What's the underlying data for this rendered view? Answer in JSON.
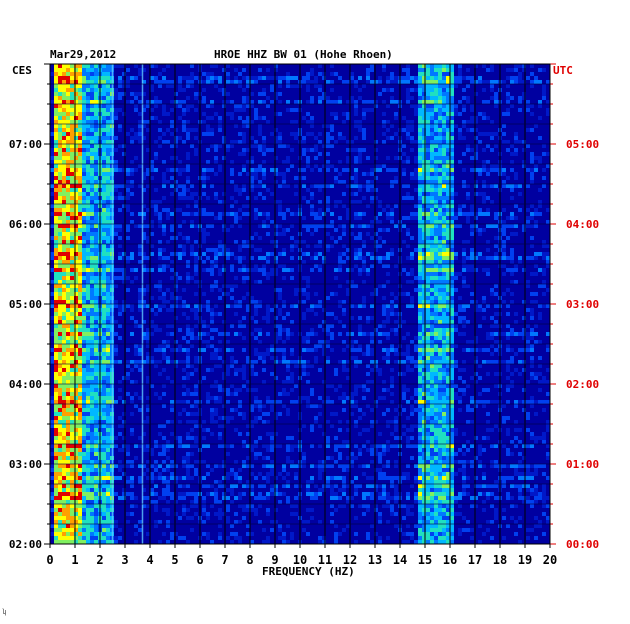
{
  "header": {
    "date": "Mar29,2012",
    "station": "HROE HHZ BW 01 (Hohe Rhoen)"
  },
  "timezones": {
    "left": "CES",
    "right": "UTC"
  },
  "footer_mark": "ʮ",
  "colors": {
    "background": "#ffffff",
    "axis_text": "#000000",
    "utc_text": "#e00000",
    "spectrum_low": "#0000a0",
    "spectrum_mid": "#00c0ff",
    "spectrum_high": "#ffff00",
    "spectrum_max": "#e00000"
  },
  "chart_data": {
    "type": "heatmap",
    "title": "HROE HHZ BW 01 (Hohe Rhoen)",
    "xlabel": "FREQUENCY (HZ)",
    "xlim": [
      0,
      20
    ],
    "x_ticks": [
      "0",
      "1",
      "2",
      "3",
      "4",
      "5",
      "6",
      "7",
      "8",
      "9",
      "10",
      "11",
      "12",
      "13",
      "14",
      "15",
      "16",
      "17",
      "18",
      "19",
      "20"
    ],
    "y_ticks_left": [
      "07:00",
      "06:00",
      "05:00",
      "04:00",
      "03:00",
      "02:00"
    ],
    "y_ticks_right": [
      "05:00",
      "04:00",
      "03:00",
      "02:00",
      "01:00",
      "00:00"
    ],
    "time_range_utc": [
      "00:00",
      "06:00"
    ],
    "energy_bands": [
      {
        "from_hz": 0.2,
        "to_hz": 1.2,
        "level": "high"
      },
      {
        "from_hz": 1.2,
        "to_hz": 2.5,
        "level": "medium"
      },
      {
        "from_hz": 14.8,
        "to_hz": 16.2,
        "level": "medium"
      }
    ],
    "spectral_lines_hz": [
      2.5,
      3.7
    ],
    "grid": true
  }
}
